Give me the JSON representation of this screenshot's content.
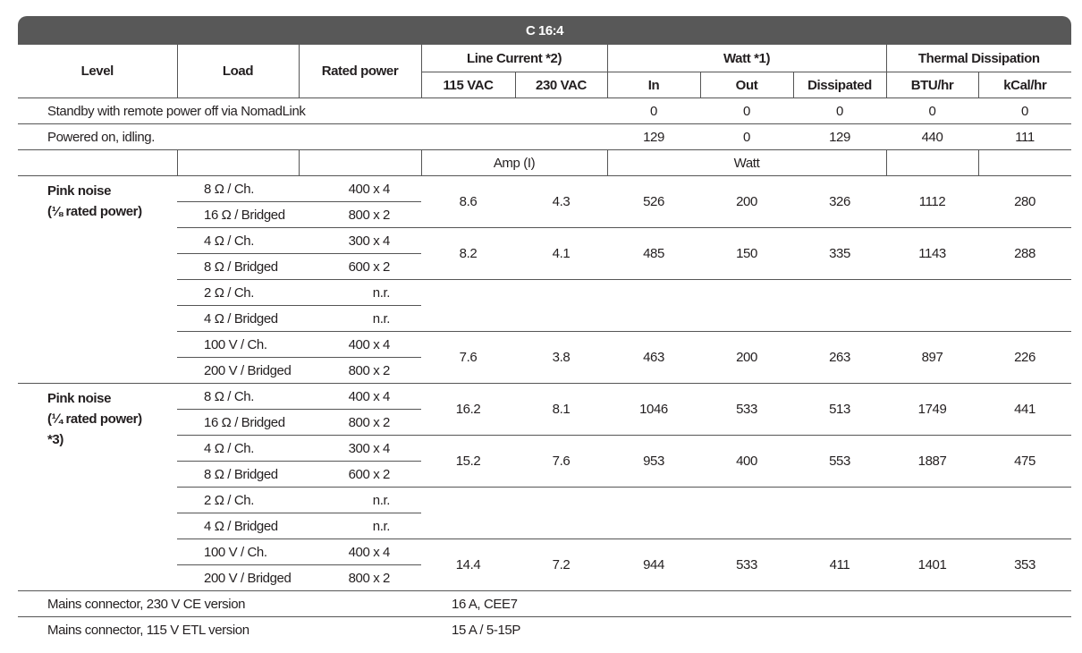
{
  "title": "C 16:4",
  "headers": {
    "level": "Level",
    "load": "Load",
    "rated_power": "Rated power",
    "line_current": "Line Current *2)",
    "watt": "Watt *1)",
    "thermal": "Thermal Dissipation",
    "sub": [
      "115 VAC",
      "230 VAC",
      "In",
      "Out",
      "Dissipated",
      "BTU/hr",
      "kCal/hr"
    ]
  },
  "simple_rows": [
    {
      "label": "Standby with remote power off via NomadLink",
      "values": [
        "0",
        "0",
        "0",
        "0",
        "0"
      ]
    },
    {
      "label": "Powered on, idling.",
      "values": [
        "129",
        "0",
        "129",
        "440",
        "111"
      ]
    }
  ],
  "unit_row": {
    "amp": "Amp (I)",
    "watt": "Watt"
  },
  "groups": [
    {
      "level": [
        "Pink noise",
        "(⅛ rated power)"
      ],
      "pairs": [
        {
          "loads": [
            [
              "8 Ω / Ch.",
              "400 x 4"
            ],
            [
              "16 Ω / Bridged",
              "800 x 2"
            ]
          ],
          "values": [
            "8.6",
            "4.3",
            "526",
            "200",
            "326",
            "1112",
            "280"
          ]
        },
        {
          "loads": [
            [
              "4 Ω / Ch.",
              "300 x 4"
            ],
            [
              "8 Ω / Bridged",
              "600 x 2"
            ]
          ],
          "values": [
            "8.2",
            "4.1",
            "485",
            "150",
            "335",
            "1143",
            "288"
          ]
        },
        {
          "loads": [
            [
              "2 Ω / Ch.",
              "n.r."
            ],
            [
              "4 Ω / Bridged",
              "n.r."
            ]
          ],
          "values": []
        },
        {
          "loads": [
            [
              "100 V / Ch.",
              "400 x 4"
            ],
            [
              "200 V / Bridged",
              "800 x 2"
            ]
          ],
          "values": [
            "7.6",
            "3.8",
            "463",
            "200",
            "263",
            "897",
            "226"
          ]
        }
      ]
    },
    {
      "level": [
        "Pink noise",
        "(¼ rated power)",
        "*3)"
      ],
      "pairs": [
        {
          "loads": [
            [
              "8 Ω / Ch.",
              "400 x 4"
            ],
            [
              "16 Ω / Bridged",
              "800 x 2"
            ]
          ],
          "values": [
            "16.2",
            "8.1",
            "1046",
            "533",
            "513",
            "1749",
            "441"
          ]
        },
        {
          "loads": [
            [
              "4 Ω / Ch.",
              "300 x 4"
            ],
            [
              "8 Ω / Bridged",
              "600 x 2"
            ]
          ],
          "values": [
            "15.2",
            "7.6",
            "953",
            "400",
            "553",
            "1887",
            "475"
          ]
        },
        {
          "loads": [
            [
              "2 Ω / Ch.",
              "n.r."
            ],
            [
              "4 Ω / Bridged",
              "n.r."
            ]
          ],
          "values": []
        },
        {
          "loads": [
            [
              "100 V / Ch.",
              "400 x 4"
            ],
            [
              "200 V / Bridged",
              "800 x 2"
            ]
          ],
          "values": [
            "14.4",
            "7.2",
            "944",
            "533",
            "411",
            "1401",
            "353"
          ]
        }
      ]
    }
  ],
  "mains": [
    {
      "label": "Mains connector, 230 V CE version",
      "value": "16 A, CEE7"
    },
    {
      "label": "Mains connector, 115 V ETL version",
      "value": "15 A / 5-15P"
    }
  ]
}
